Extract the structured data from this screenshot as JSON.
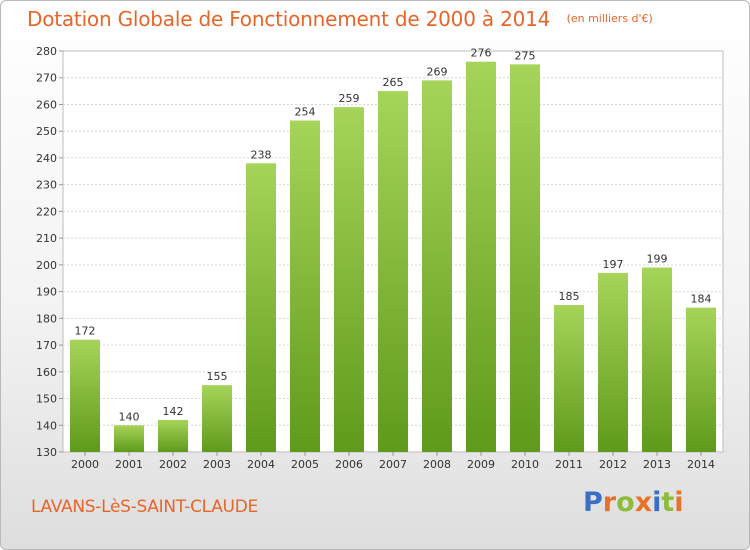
{
  "title": {
    "main": "Dotation Globale de Fonctionnement de 2000 à 2014",
    "unit": "(en milliers d'€)"
  },
  "commune": "LAVANS-LèS-SAINT-CLAUDE",
  "logo": {
    "text": "Proxiti",
    "letters": [
      "P",
      "r",
      "o",
      "x",
      "i",
      "t",
      "i"
    ],
    "colors": [
      "#3a6fc4",
      "#e8722a",
      "#8ebc3a",
      "#e8722a",
      "#3a6fc4",
      "#8ebc3a",
      "#e8722a"
    ]
  },
  "colors": {
    "accent": "#e8652a",
    "bar_top": "#a6d45a",
    "bar_bottom": "#5f9a1c"
  },
  "chart_data": {
    "type": "bar",
    "title": "Dotation Globale de Fonctionnement de 2000 à 2014",
    "subtitle": "(en milliers d'€)",
    "xlabel": "",
    "ylabel": "",
    "categories": [
      "2000",
      "2001",
      "2002",
      "2003",
      "2004",
      "2005",
      "2006",
      "2007",
      "2008",
      "2009",
      "2010",
      "2011",
      "2012",
      "2013",
      "2014"
    ],
    "values": [
      172,
      140,
      142,
      155,
      238,
      254,
      259,
      265,
      269,
      276,
      275,
      185,
      197,
      199,
      184
    ],
    "ylim": [
      130,
      280
    ],
    "yticks": [
      130,
      140,
      150,
      160,
      170,
      180,
      190,
      200,
      210,
      220,
      230,
      240,
      250,
      260,
      270,
      280
    ],
    "grid": true,
    "legend": "none"
  }
}
